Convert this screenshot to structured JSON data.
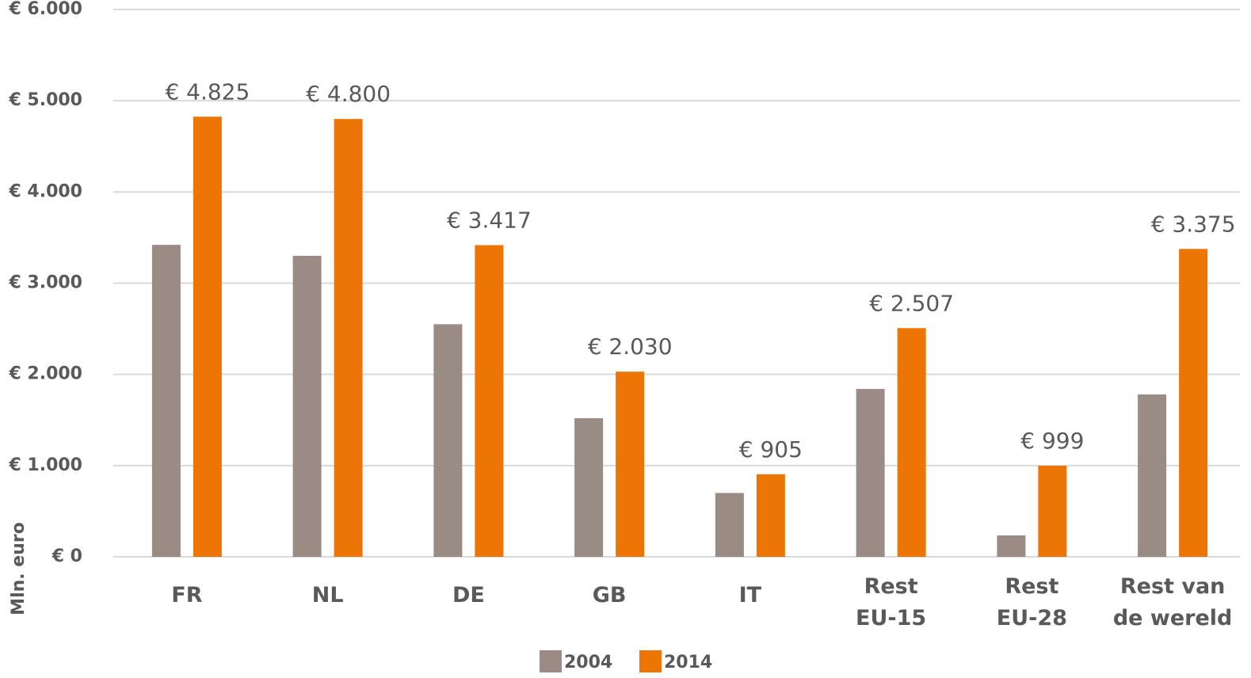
{
  "chart_data": {
    "type": "bar",
    "y_label": "Mln. euro",
    "categories": [
      "FR",
      "NL",
      "DE",
      "GB",
      "IT",
      "Rest\nEU-15",
      "Rest\nEU-28",
      "Rest van\nde wereld"
    ],
    "series": [
      {
        "name": "2004",
        "color": "#9a8b85",
        "values": [
          3420,
          3300,
          2550,
          1520,
          700,
          1840,
          235,
          1780
        ]
      },
      {
        "name": "2014",
        "color": "#ed7506",
        "values": [
          4825,
          4800,
          3417,
          2030,
          905,
          2507,
          999,
          3375
        ],
        "value_labels": [
          "€ 4.825",
          "€ 4.800",
          "€ 3.417",
          "€ 2.030",
          "€ 905",
          "€ 2.507",
          "€ 999",
          "€ 3.375"
        ]
      }
    ],
    "ylim": [
      0,
      6000
    ],
    "yticks": [
      {
        "value": 0,
        "label": "€ 0"
      },
      {
        "value": 1000,
        "label": "€ 1.000"
      },
      {
        "value": 2000,
        "label": "€ 2.000"
      },
      {
        "value": 3000,
        "label": "€ 3.000"
      },
      {
        "value": 4000,
        "label": "€ 4.000"
      },
      {
        "value": 5000,
        "label": "€ 5.000"
      },
      {
        "value": 6000,
        "label": "€ 6.000"
      }
    ],
    "grid": true,
    "legend": "bottom"
  }
}
